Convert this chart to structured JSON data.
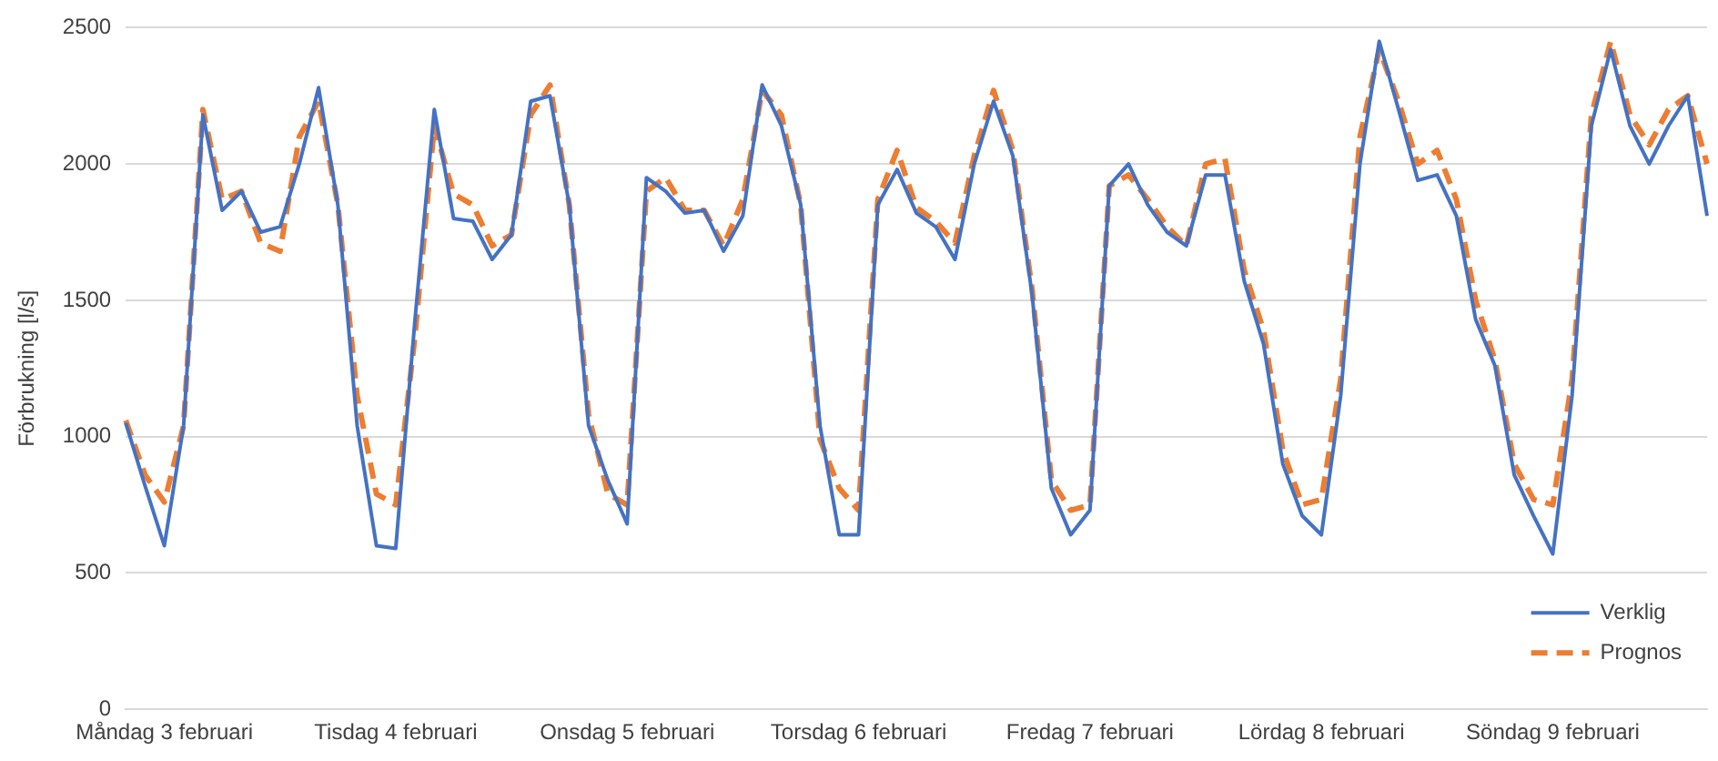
{
  "chart_data": {
    "type": "line",
    "ylabel": "Förbrukning [l/s]",
    "categories": [
      null,
      null,
      "Måndag 3 februari",
      null,
      null,
      null,
      null,
      null,
      null,
      null,
      null,
      null,
      null,
      null,
      "Tisdag 4 februari",
      null,
      null,
      null,
      null,
      null,
      null,
      null,
      null,
      null,
      null,
      null,
      "Onsdag 5 februari",
      null,
      null,
      null,
      null,
      null,
      null,
      null,
      null,
      null,
      null,
      null,
      "Torsdag 6 februari",
      null,
      null,
      null,
      null,
      null,
      null,
      null,
      null,
      null,
      null,
      null,
      "Fredag 7 februari",
      null,
      null,
      null,
      null,
      null,
      null,
      null,
      null,
      null,
      null,
      null,
      "Lördag 8 februari",
      null,
      null,
      null,
      null,
      null,
      null,
      null,
      null,
      null,
      null,
      null,
      "Söndag 9 februari",
      null,
      null,
      null,
      null,
      null,
      null,
      null,
      null
    ],
    "series": [
      {
        "name": "Verklig",
        "color": "#4472c4",
        "line_style": "solid",
        "values": [
          1050,
          820,
          600,
          1040,
          2180,
          1830,
          1900,
          1750,
          1770,
          2000,
          2280,
          1850,
          1040,
          600,
          590,
          1430,
          2200,
          1800,
          1790,
          1650,
          1740,
          2230,
          2250,
          1850,
          1040,
          840,
          680,
          1950,
          1900,
          1820,
          1830,
          1680,
          1810,
          2290,
          2140,
          1850,
          1040,
          640,
          640,
          1850,
          1980,
          1820,
          1770,
          1650,
          2000,
          2230,
          2030,
          1520,
          810,
          640,
          730,
          1920,
          2000,
          1850,
          1750,
          1700,
          1960,
          1960,
          1570,
          1340,
          900,
          710,
          640,
          1150,
          2000,
          2450,
          2200,
          1940,
          1960,
          1810,
          1430,
          1260,
          860,
          710,
          570,
          1150,
          2140,
          2420,
          2140,
          2000,
          2140,
          2250,
          1810
        ]
      },
      {
        "name": "Prognos",
        "color": "#ed7d31",
        "line_style": "dashed",
        "values": [
          1060,
          860,
          760,
          1040,
          2200,
          1870,
          1900,
          1710,
          1680,
          2100,
          2230,
          1850,
          1150,
          790,
          750,
          1370,
          2140,
          1890,
          1850,
          1700,
          1740,
          2180,
          2290,
          1850,
          1080,
          790,
          750,
          1900,
          1950,
          1830,
          1830,
          1700,
          1870,
          2270,
          2180,
          1850,
          990,
          810,
          730,
          1870,
          2050,
          1840,
          1790,
          1710,
          2030,
          2270,
          2050,
          1540,
          840,
          730,
          750,
          1920,
          1960,
          1870,
          1770,
          1700,
          2000,
          2020,
          1610,
          1390,
          950,
          750,
          770,
          1210,
          2100,
          2420,
          2230,
          2000,
          2050,
          1870,
          1500,
          1280,
          900,
          770,
          750,
          1210,
          2180,
          2450,
          2180,
          2070,
          2200,
          2250,
          2000
        ]
      }
    ],
    "ylim": [
      0,
      2500
    ],
    "yticks": [
      0,
      500,
      1000,
      1500,
      2000,
      2500
    ],
    "grid": "y",
    "legend": "bottom right"
  }
}
